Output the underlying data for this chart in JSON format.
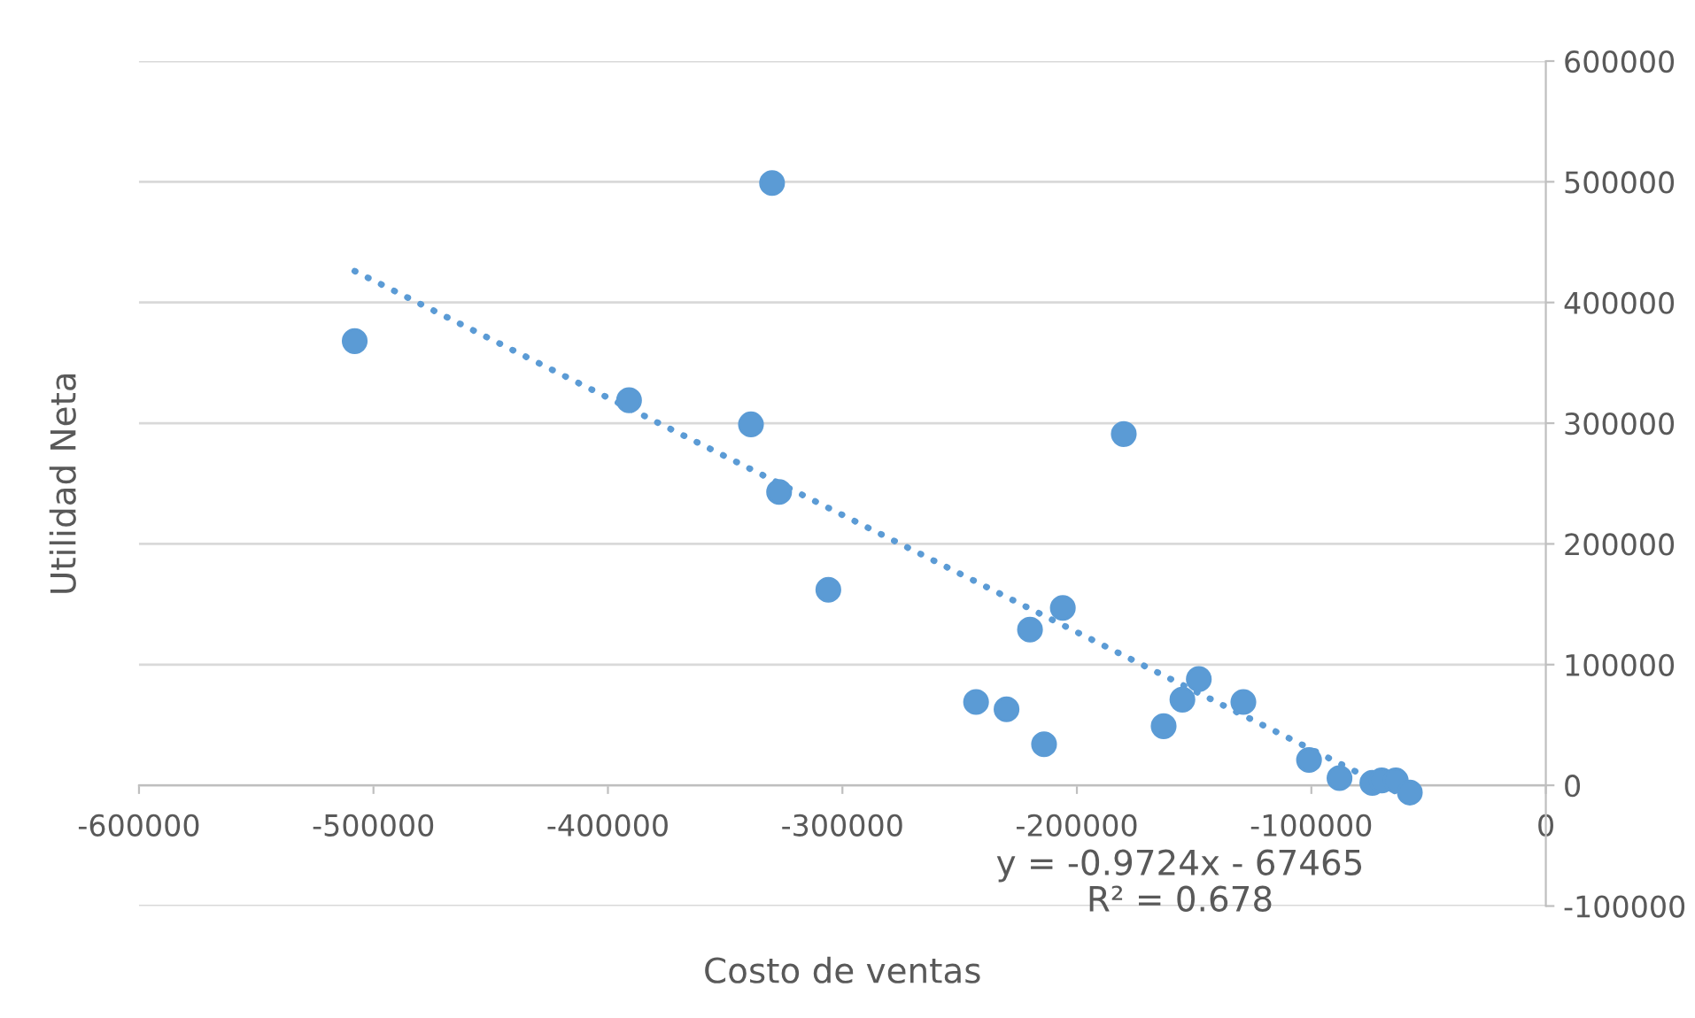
{
  "chart_data": {
    "type": "scatter",
    "xlabel": "Costo de ventas",
    "ylabel": "Utilidad Neta",
    "xlim": [
      -600000,
      0
    ],
    "xticks": [
      -600000,
      -500000,
      -400000,
      -300000,
      -200000,
      -100000,
      0
    ],
    "ylim": [
      -100000,
      600000
    ],
    "yticks": [
      -100000,
      0,
      100000,
      200000,
      300000,
      400000,
      500000,
      600000
    ],
    "grid": "y",
    "series": [
      {
        "color": "#5b9bd5",
        "marker": "circle",
        "x": [
          -508000,
          -330000,
          -391000,
          -339000,
          -327000,
          -306000,
          -180000,
          -206000,
          -220000,
          -243000,
          -230000,
          -214000,
          -148000,
          -155000,
          -129000,
          -163000,
          -101000,
          -88000,
          -74000,
          -70000,
          -64000,
          -58000
        ],
        "values": [
          368000,
          499000,
          319000,
          299000,
          243000,
          162000,
          291000,
          147000,
          129000,
          69000,
          63000,
          34000,
          88000,
          71000,
          69000,
          49000,
          21000,
          6000,
          2000,
          4000,
          4000,
          -6000
        ]
      },
      {
        "type": "line",
        "color": "#5b9bd5",
        "line_style": "dotted",
        "x": [
          -508000,
          -58000
        ],
        "values": [
          426000,
          -11000
        ]
      }
    ],
    "annotations": [
      "y = -0.9724x - 67465",
      "R² = 0.678"
    ]
  }
}
